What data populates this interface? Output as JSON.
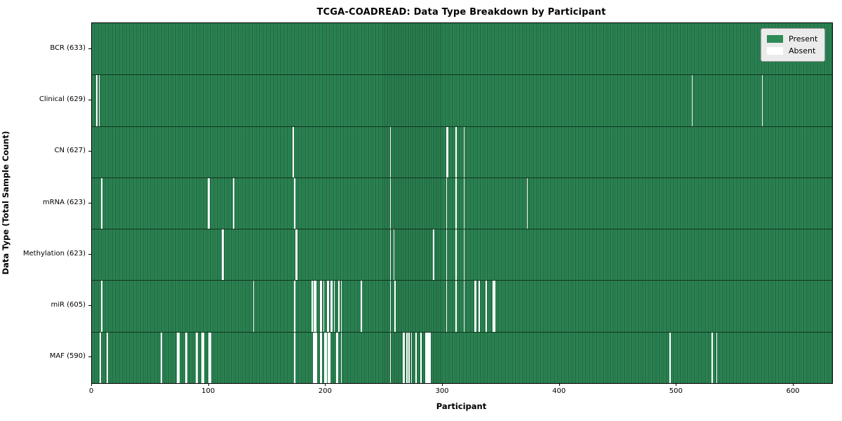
{
  "title": "TCGA-COADREAD: Data Type Breakdown by Participant",
  "axes": {
    "xlabel": "Participant",
    "ylabel": "Data Type (Total Sample Count)"
  },
  "legend": {
    "present_label": "Present",
    "absent_label": "Absent"
  },
  "colors": {
    "present_fill": "#2e8b57",
    "present_edge": "#1c5737",
    "absent_fill": "#ffffff",
    "legend_bg": "#ebebeb",
    "legend_border": "#999999",
    "text": "#000000"
  },
  "chart_data": {
    "type": "heatmap",
    "title": "TCGA-COADREAD: Data Type Breakdown by Participant",
    "xlabel": "Participant",
    "ylabel": "Data Type (Total Sample Count)",
    "legend_entries": [
      "Present",
      "Absent"
    ],
    "legend_position": "upper right",
    "x_axis": {
      "min": 0,
      "max": 633,
      "ticks": [
        0,
        100,
        200,
        300,
        400,
        500,
        600
      ]
    },
    "total_participants": 633,
    "rows": [
      {
        "label": "BCR (633)",
        "name": "BCR",
        "present_count": 633,
        "absent_participants": []
      },
      {
        "label": "Clinical (629)",
        "name": "Clinical",
        "present_count": 629,
        "absent_participants": [
          4,
          6,
          513,
          573
        ]
      },
      {
        "label": "CN (627)",
        "name": "CN",
        "present_count": 627,
        "absent_participants": [
          172,
          255,
          303,
          304,
          311,
          318
        ]
      },
      {
        "label": "mRNA (623)",
        "name": "mRNA",
        "present_count": 623,
        "absent_participants": [
          8,
          99,
          100,
          121,
          173,
          255,
          303,
          311,
          318,
          372
        ]
      },
      {
        "label": "Methylation (623)",
        "name": "Methylation",
        "present_count": 623,
        "absent_participants": [
          111,
          112,
          174,
          175,
          255,
          258,
          292,
          303,
          311,
          318
        ]
      },
      {
        "label": "miR (605)",
        "name": "miR",
        "present_count": 605,
        "absent_participants": [
          8,
          138,
          173,
          188,
          190,
          191,
          195,
          196,
          198,
          201,
          202,
          204,
          205,
          207,
          211,
          213,
          230,
          255,
          259,
          303,
          311,
          318,
          327,
          328,
          331,
          337,
          343,
          344
        ]
      },
      {
        "label": "MAF (590)",
        "name": "MAF",
        "present_count": 590,
        "absent_participants": [
          7,
          13,
          59,
          73,
          74,
          80,
          81,
          89,
          90,
          94,
          95,
          100,
          101,
          173,
          189,
          190,
          191,
          192,
          195,
          196,
          199,
          200,
          202,
          203,
          209,
          210,
          213,
          255,
          266,
          267,
          269,
          271,
          273,
          277,
          281,
          285,
          286,
          287,
          288,
          289,
          494,
          530,
          534
        ]
      }
    ]
  }
}
